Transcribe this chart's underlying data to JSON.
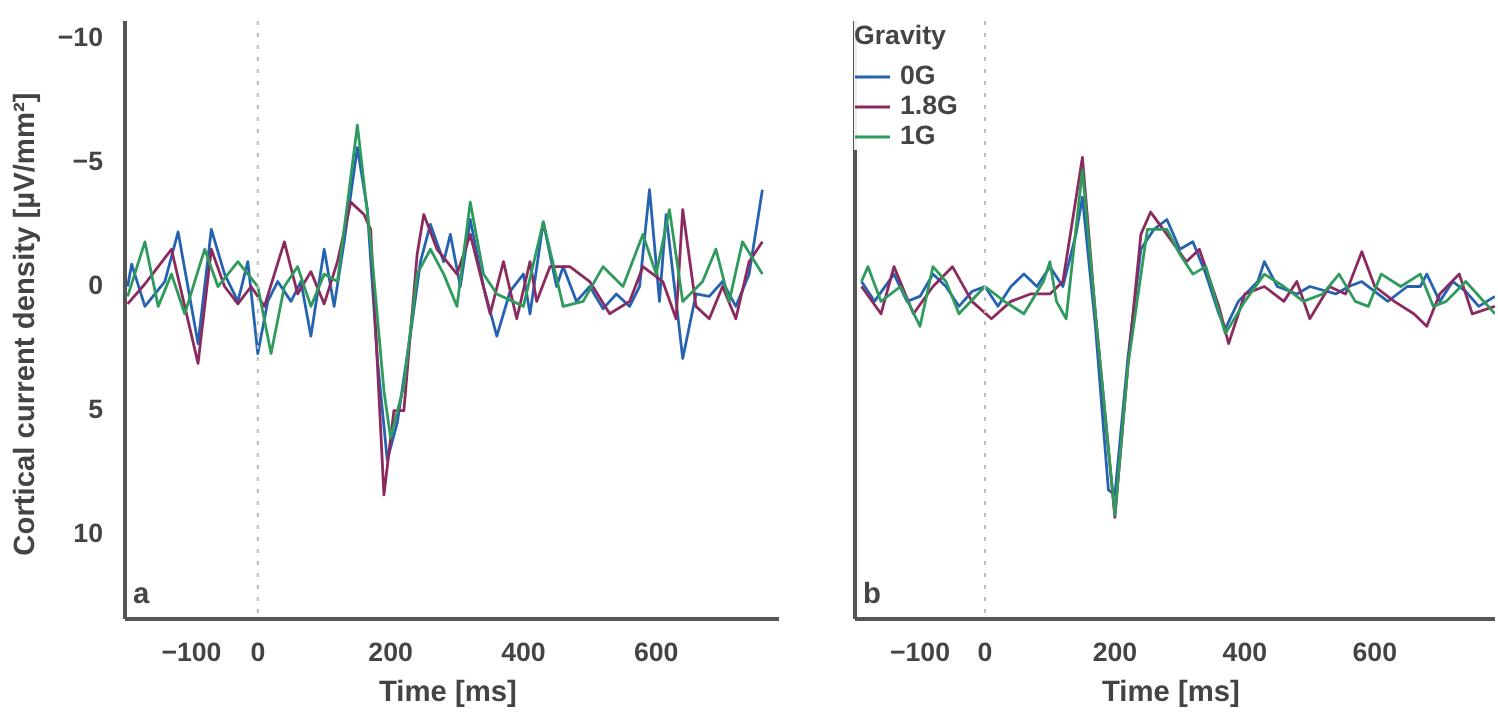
{
  "chart_data": [
    {
      "type": "line",
      "xlabel": "Time  [ms]",
      "ylabel": "Cortical current density  [µV/mm²]",
      "annotations": [
        "a"
      ],
      "xlim": [
        -200,
        785
      ],
      "ylim": [
        13.5,
        -10.6
      ],
      "xticks": [
        -100,
        0,
        200,
        400,
        600
      ],
      "yticks": [
        -10,
        -5,
        0,
        5,
        10
      ],
      "grid": false,
      "legend": false,
      "ref_lines": [
        {
          "axis": "x",
          "value": 0,
          "color": "#bbbbbb",
          "line_style": "dotted"
        }
      ],
      "series": [
        {
          "color": "#2563b0",
          "x": [
            -196,
            -190,
            -170,
            -140,
            -120,
            -100,
            -90,
            -70,
            -50,
            -30,
            -15,
            0,
            15,
            30,
            50,
            65,
            80,
            100,
            115,
            130,
            150,
            165,
            180,
            195,
            210,
            230,
            245,
            260,
            280,
            290,
            305,
            320,
            340,
            360,
            380,
            400,
            410,
            430,
            450,
            460,
            480,
            500,
            520,
            540,
            560,
            575,
            590,
            605,
            615,
            640,
            660,
            680,
            700,
            720,
            740,
            760
          ],
          "values": [
            0.1,
            -0.8,
            0.9,
            -0.1,
            -2.1,
            0.9,
            2.4,
            -2.2,
            -0.4,
            0.7,
            -0.9,
            2.8,
            0.7,
            -0.1,
            0.7,
            -0.1,
            2.1,
            -1.4,
            0.9,
            -1.7,
            -5.5,
            -3.0,
            3.0,
            7.1,
            5.6,
            2.0,
            -0.9,
            -2.4,
            -0.9,
            -2.0,
            0.1,
            -2.6,
            0.1,
            2.1,
            0.3,
            -0.4,
            1.2,
            -2.5,
            0.1,
            -0.7,
            0.7,
            0.1,
            1.0,
            0.4,
            0.9,
            0.1,
            -3.8,
            0.7,
            -2.8,
            3.0,
            0.4,
            0.5,
            -0.1,
            0.9,
            -0.4,
            -3.8
          ]
        },
        {
          "color": "#8b2a5e",
          "x": [
            -196,
            -170,
            -150,
            -130,
            -110,
            -90,
            -70,
            -50,
            -30,
            -10,
            10,
            40,
            60,
            80,
            100,
            120,
            140,
            160,
            170,
            190,
            205,
            220,
            240,
            250,
            270,
            300,
            320,
            350,
            370,
            390,
            410,
            420,
            440,
            470,
            500,
            530,
            560,
            580,
            610,
            630,
            640,
            660,
            680,
            700,
            720,
            740,
            760
          ],
          "values": [
            0.8,
            0.0,
            -0.7,
            -1.4,
            0.9,
            3.2,
            -1.4,
            0.1,
            0.8,
            0.1,
            0.9,
            -1.7,
            0.4,
            -0.5,
            0.8,
            -0.9,
            -3.3,
            -2.8,
            -2.2,
            8.5,
            5.1,
            5.1,
            -1.2,
            -2.8,
            -1.4,
            -0.4,
            -2.0,
            1.2,
            -0.9,
            1.4,
            -0.9,
            0.7,
            -0.7,
            -0.7,
            -0.1,
            1.2,
            0.7,
            -0.7,
            -0.1,
            1.4,
            -3.0,
            0.9,
            1.4,
            0.1,
            1.4,
            -0.9,
            -1.7
          ]
        },
        {
          "color": "#2e9a5c",
          "x": [
            -196,
            -170,
            -150,
            -130,
            -110,
            -80,
            -60,
            -30,
            0,
            20,
            40,
            60,
            80,
            100,
            120,
            150,
            170,
            190,
            200,
            220,
            240,
            260,
            280,
            300,
            320,
            340,
            360,
            400,
            430,
            460,
            490,
            520,
            550,
            580,
            600,
            620,
            640,
            670,
            690,
            710,
            730,
            760
          ],
          "values": [
            0.5,
            -1.7,
            0.9,
            -0.4,
            1.2,
            -1.4,
            0.1,
            -0.9,
            0.1,
            2.8,
            0.1,
            -0.7,
            0.9,
            -0.4,
            -0.1,
            -6.4,
            -1.7,
            4.3,
            6.2,
            4.1,
            -0.4,
            -1.4,
            -0.4,
            0.9,
            -3.3,
            -0.4,
            0.4,
            0.9,
            -2.5,
            0.9,
            0.7,
            -0.7,
            0.1,
            -2.0,
            -0.4,
            -3.0,
            0.7,
            -0.1,
            -1.4,
            0.7,
            -1.7,
            -0.4
          ]
        }
      ]
    },
    {
      "type": "line",
      "xlabel": "Time  [ms]",
      "legend_title": "Gravity",
      "annotations": [
        "b"
      ],
      "xlim": [
        -200,
        785
      ],
      "ylim": [
        13.5,
        -10.6
      ],
      "xticks": [
        -100,
        0,
        200,
        400,
        600
      ],
      "tick_labels": "x",
      "grid": false,
      "legend": "top left",
      "ref_lines": [
        {
          "axis": "x",
          "value": 0,
          "color": "#bbbbbb",
          "line_style": "dotted"
        }
      ],
      "series": [
        {
          "name": "0G",
          "color": "#2563b0",
          "x": [
            -190,
            -170,
            -140,
            -120,
            -100,
            -80,
            -60,
            -40,
            -20,
            0,
            20,
            40,
            60,
            80,
            100,
            120,
            140,
            150,
            170,
            190,
            200,
            220,
            240,
            260,
            280,
            300,
            320,
            340,
            360,
            370,
            390,
            420,
            430,
            450,
            480,
            500,
            540,
            560,
            580,
            620,
            650,
            670,
            680,
            700,
            720,
            740,
            760,
            785
          ],
          "values": [
            -0.1,
            0.7,
            -0.4,
            0.7,
            0.5,
            -0.4,
            0.1,
            0.9,
            0.3,
            0.1,
            0.9,
            0.1,
            -0.4,
            0.1,
            -0.7,
            0.1,
            -2.0,
            -3.5,
            1.7,
            8.3,
            8.5,
            3.0,
            -1.4,
            -2.2,
            -2.6,
            -1.4,
            -1.7,
            -0.4,
            1.2,
            1.8,
            0.7,
            -0.1,
            -0.9,
            0.1,
            0.4,
            0.1,
            0.4,
            0.1,
            -0.1,
            0.7,
            0.1,
            0.1,
            -0.4,
            0.7,
            -0.1,
            0.3,
            0.9,
            0.5
          ]
        },
        {
          "name": "1.8G",
          "color": "#8b2a5e",
          "x": [
            -190,
            -160,
            -140,
            -110,
            -80,
            -50,
            -20,
            10,
            40,
            70,
            100,
            120,
            150,
            170,
            200,
            220,
            240,
            255,
            280,
            310,
            330,
            360,
            375,
            400,
            430,
            460,
            480,
            500,
            530,
            555,
            580,
            600,
            630,
            660,
            680,
            700,
            730,
            750,
            785
          ],
          "values": [
            0.1,
            1.2,
            -0.7,
            1.2,
            0.1,
            -0.7,
            0.7,
            1.4,
            0.7,
            0.4,
            0.4,
            -0.1,
            -5.1,
            1.2,
            9.4,
            3.3,
            -2.0,
            -2.9,
            -2.0,
            -0.9,
            -1.4,
            0.9,
            2.4,
            0.4,
            0.1,
            0.7,
            -0.1,
            1.4,
            0.1,
            0.4,
            -1.3,
            0.1,
            0.7,
            1.2,
            1.7,
            0.4,
            -0.4,
            1.2,
            0.9
          ]
        },
        {
          "name": "1G",
          "color": "#2e9a5c",
          "x": [
            -190,
            -180,
            -160,
            -130,
            -100,
            -80,
            -60,
            -40,
            0,
            30,
            60,
            90,
            100,
            110,
            125,
            150,
            170,
            200,
            220,
            250,
            280,
            300,
            320,
            340,
            370,
            400,
            430,
            460,
            490,
            520,
            545,
            570,
            590,
            610,
            640,
            670,
            690,
            710,
            740,
            785
          ],
          "values": [
            -0.1,
            -0.7,
            0.7,
            0.1,
            1.7,
            -0.7,
            -0.1,
            1.2,
            0.1,
            0.7,
            1.2,
            -0.1,
            -0.9,
            0.7,
            1.4,
            -4.6,
            1.2,
            9.3,
            3.3,
            -2.2,
            -2.2,
            -1.2,
            -0.4,
            -0.7,
            2.0,
            0.7,
            -0.4,
            0.1,
            0.7,
            0.4,
            -0.4,
            0.7,
            0.9,
            -0.4,
            0.1,
            -0.4,
            0.9,
            0.7,
            -0.1,
            1.2
          ]
        }
      ]
    }
  ]
}
